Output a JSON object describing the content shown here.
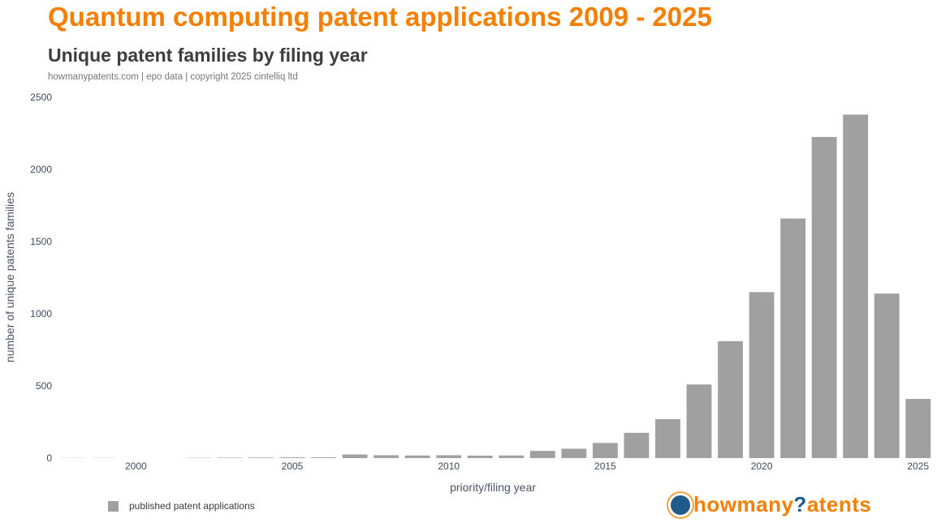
{
  "header": {
    "title": "Quantum computing patent applications 2009 - 2025",
    "subtitle": "Unique patent families by filing year",
    "source": "howmanypatents.com | epo data | copyright 2025 cintelliq ltd"
  },
  "legend": {
    "label": "published patent applications",
    "color": "#a0a0a0"
  },
  "logo": {
    "part1": "howmany",
    "part2": "?",
    "part3": "atents",
    "icon": "globe-dot-icon"
  },
  "chart_data": {
    "type": "bar",
    "categories": [
      1998,
      1999,
      2000,
      2001,
      2002,
      2003,
      2004,
      2005,
      2006,
      2007,
      2008,
      2009,
      2010,
      2011,
      2012,
      2013,
      2014,
      2015,
      2016,
      2017,
      2018,
      2019,
      2020,
      2021,
      2022,
      2023,
      2024,
      2025
    ],
    "series": [
      {
        "name": "published patent applications",
        "values": [
          1,
          1,
          0,
          0,
          2,
          3,
          4,
          5,
          5,
          25,
          20,
          18,
          20,
          17,
          18,
          50,
          65,
          105,
          175,
          270,
          510,
          810,
          1150,
          1660,
          2225,
          2380,
          1140,
          410
        ]
      }
    ],
    "xlabel": "priority/filing year",
    "ylabel": "number of unique patents families",
    "ylim": [
      0,
      2500
    ],
    "yticks": [
      0,
      500,
      1000,
      1500,
      2000,
      2500
    ],
    "xticks": [
      2000,
      2005,
      2010,
      2015,
      2020,
      2025
    ],
    "bar_color": "#a0a0a0",
    "grid": false,
    "legend_position": "bottom-left"
  }
}
